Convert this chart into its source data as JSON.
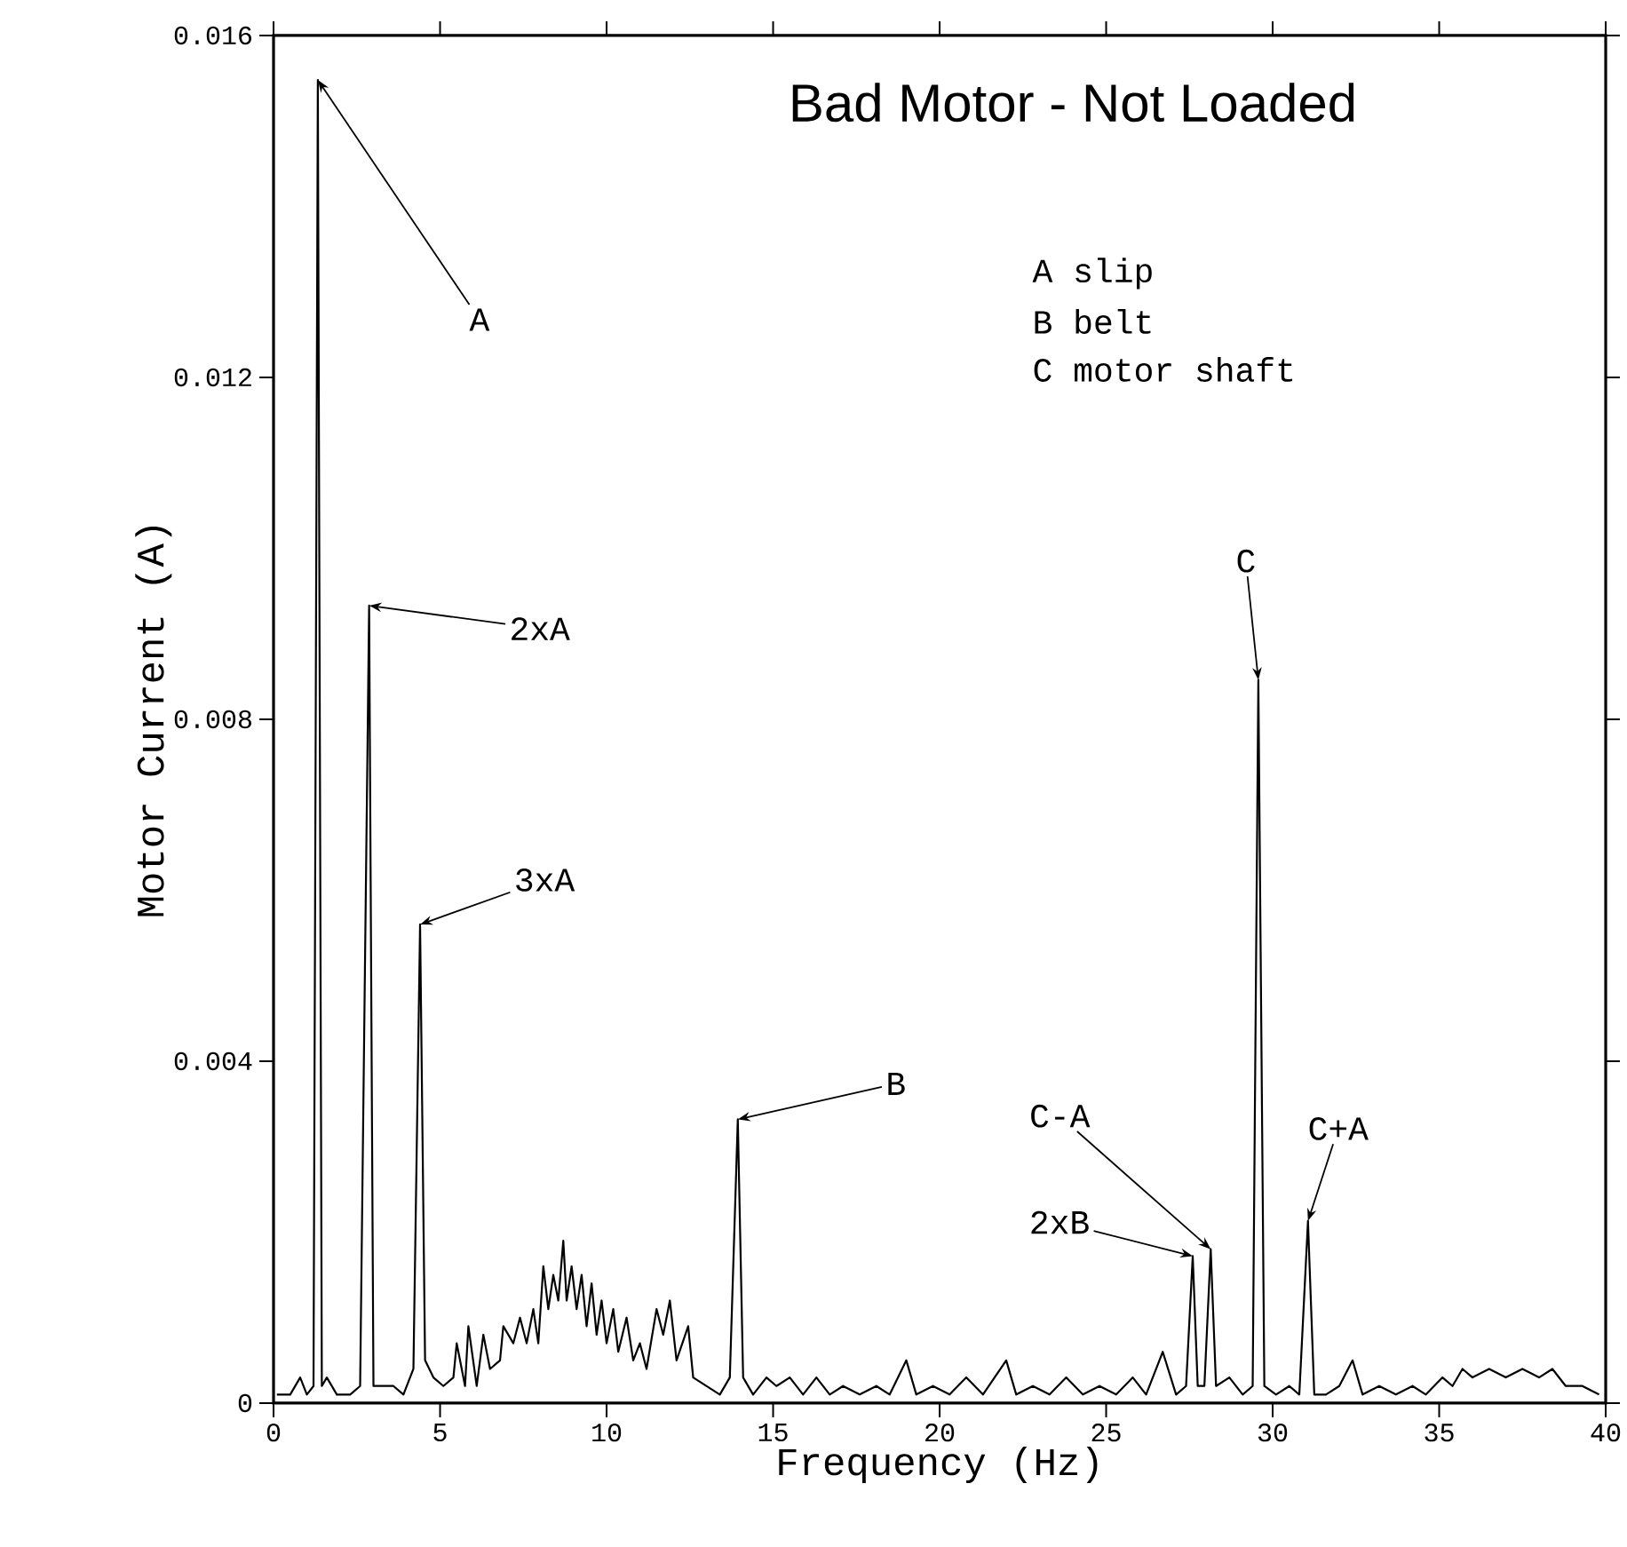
{
  "chart_data": {
    "type": "line",
    "title": "Bad Motor - Not Loaded",
    "xlabel": "Frequency (Hz)",
    "ylabel": "Motor Current (A)",
    "color": "#000000",
    "marker": "none",
    "xlim": [
      0,
      40
    ],
    "xticks": [
      0,
      5,
      10,
      15,
      20,
      25,
      30,
      35,
      40
    ],
    "ylim": [
      0,
      0.016
    ],
    "yticks": [
      0,
      0.004,
      0.008,
      0.012,
      0.016
    ],
    "x": [
      0.1,
      0.5,
      0.8,
      1.0,
      1.2,
      1.33,
      1.45,
      1.6,
      1.9,
      2.3,
      2.6,
      2.87,
      3.0,
      3.3,
      3.6,
      3.9,
      4.2,
      4.4,
      4.55,
      4.8,
      5.1,
      5.4,
      5.5,
      5.75,
      5.85,
      6.1,
      6.3,
      6.5,
      6.8,
      6.9,
      7.2,
      7.4,
      7.6,
      7.8,
      7.95,
      8.1,
      8.25,
      8.4,
      8.55,
      8.7,
      8.8,
      8.95,
      9.1,
      9.25,
      9.4,
      9.55,
      9.7,
      9.85,
      10.0,
      10.2,
      10.35,
      10.6,
      10.8,
      11.0,
      11.2,
      11.5,
      11.7,
      11.9,
      12.1,
      12.45,
      12.6,
      13.0,
      13.4,
      13.7,
      13.94,
      14.1,
      14.4,
      14.8,
      15.1,
      15.5,
      15.9,
      16.3,
      16.7,
      17.1,
      17.6,
      18.1,
      18.5,
      19.0,
      19.3,
      19.8,
      20.3,
      20.8,
      21.3,
      22.0,
      22.3,
      22.8,
      23.3,
      23.8,
      24.3,
      24.8,
      25.3,
      25.8,
      26.2,
      26.7,
      27.1,
      27.4,
      27.6,
      27.75,
      27.95,
      28.14,
      28.3,
      28.7,
      29.1,
      29.4,
      29.57,
      29.75,
      30.1,
      30.5,
      30.8,
      31.06,
      31.25,
      31.6,
      32.0,
      32.4,
      32.7,
      33.2,
      33.7,
      34.2,
      34.6,
      35.1,
      35.4,
      35.7,
      36.0,
      36.5,
      37.0,
      37.5,
      38.0,
      38.4,
      38.8,
      39.3,
      39.8
    ],
    "values": [
      0.0001,
      0.0001,
      0.0003,
      0.0001,
      0.0002,
      0.01548,
      0.0002,
      0.0003,
      0.0001,
      0.0001,
      0.0002,
      0.00933,
      0.0002,
      0.0002,
      0.0002,
      0.0001,
      0.0004,
      0.0056,
      0.0005,
      0.0003,
      0.0002,
      0.0003,
      0.0007,
      0.0002,
      0.0009,
      0.0002,
      0.0008,
      0.0004,
      0.0005,
      0.0009,
      0.0007,
      0.001,
      0.0007,
      0.0011,
      0.0007,
      0.0016,
      0.0011,
      0.0015,
      0.0012,
      0.0019,
      0.0012,
      0.0016,
      0.0011,
      0.0015,
      0.0009,
      0.0014,
      0.0008,
      0.0012,
      0.0007,
      0.0011,
      0.0006,
      0.001,
      0.0005,
      0.0007,
      0.0004,
      0.0011,
      0.0008,
      0.0012,
      0.0005,
      0.0009,
      0.0003,
      0.0002,
      0.0001,
      0.0003,
      0.00332,
      0.0003,
      0.0001,
      0.0003,
      0.0002,
      0.0003,
      0.0001,
      0.0003,
      0.0001,
      0.0002,
      0.0001,
      0.0002,
      0.0001,
      0.0005,
      0.0001,
      0.0002,
      0.0001,
      0.0003,
      0.0001,
      0.0005,
      0.0001,
      0.0002,
      0.0001,
      0.0003,
      0.0001,
      0.0002,
      0.0001,
      0.0003,
      0.0001,
      0.0006,
      0.0001,
      0.0002,
      0.00172,
      0.0002,
      0.0002,
      0.0018,
      0.0002,
      0.0003,
      0.0001,
      0.0002,
      0.00846,
      0.0002,
      0.0001,
      0.0002,
      0.0001,
      0.00213,
      0.0001,
      0.0001,
      0.0002,
      0.0005,
      0.0001,
      0.0002,
      0.0001,
      0.0002,
      0.0001,
      0.0003,
      0.0002,
      0.0004,
      0.0003,
      0.0004,
      0.0003,
      0.0004,
      0.0003,
      0.0004,
      0.0002,
      0.0002,
      0.0001
    ],
    "annotations": [
      {
        "text": "A",
        "x": 1.33,
        "y": 0.01548
      },
      {
        "text": "2xA",
        "x": 2.87,
        "y": 0.00933
      },
      {
        "text": "3xA",
        "x": 4.4,
        "y": 0.0056
      },
      {
        "text": "B",
        "x": 13.94,
        "y": 0.00332
      },
      {
        "text": "2xB",
        "x": 27.6,
        "y": 0.00172
      },
      {
        "text": "C-A",
        "x": 28.14,
        "y": 0.0018
      },
      {
        "text": "C",
        "x": 29.57,
        "y": 0.00846
      },
      {
        "text": "C+A",
        "x": 31.06,
        "y": 0.00213
      },
      "A slip",
      "B belt",
      "C motor shaft"
    ]
  }
}
